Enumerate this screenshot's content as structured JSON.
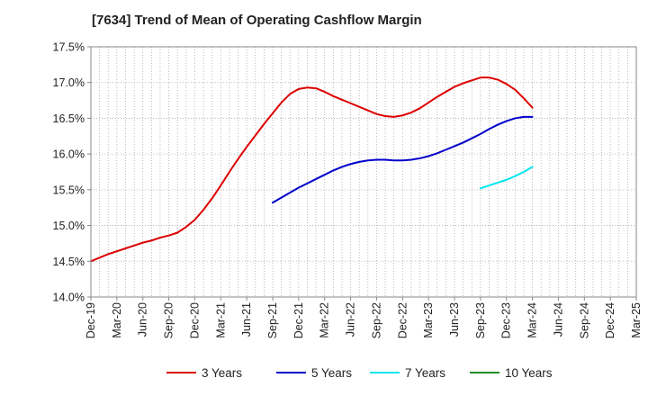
{
  "chart_data": {
    "type": "line",
    "title": "[7634]  Trend of Mean of Operating Cashflow Margin",
    "xlabel": "",
    "ylabel": "",
    "ylim": [
      14.0,
      17.5
    ],
    "y_ticks": [
      14.0,
      14.5,
      15.0,
      15.5,
      16.0,
      16.5,
      17.0,
      17.5
    ],
    "y_tick_labels": [
      "14.0%",
      "14.5%",
      "15.0%",
      "15.5%",
      "16.0%",
      "16.5%",
      "17.0%",
      "17.5%"
    ],
    "x_tick_labels": [
      "Dec-19",
      "Mar-20",
      "Jun-20",
      "Sep-20",
      "Dec-20",
      "Mar-21",
      "Jun-21",
      "Sep-21",
      "Dec-21",
      "Mar-22",
      "Jun-22",
      "Sep-22",
      "Dec-22",
      "Mar-23",
      "Jun-23",
      "Sep-23",
      "Dec-23",
      "Mar-24",
      "Jun-24",
      "Sep-24",
      "Dec-24",
      "Mar-25"
    ],
    "grid": true,
    "legend_position": "bottom",
    "series": [
      {
        "name": "3 Years",
        "color": "#dd0000",
        "x": [
          "Dec-19",
          "Jan-20",
          "Feb-20",
          "Mar-20",
          "Apr-20",
          "May-20",
          "Jun-20",
          "Jul-20",
          "Aug-20",
          "Sep-20",
          "Oct-20",
          "Nov-20",
          "Dec-20",
          "Jan-21",
          "Feb-21",
          "Mar-21",
          "Apr-21",
          "May-21",
          "Jun-21",
          "Jul-21",
          "Aug-21",
          "Sep-21",
          "Oct-21",
          "Nov-21",
          "Dec-21",
          "Jan-22",
          "Feb-22",
          "Mar-22",
          "Apr-22",
          "May-22",
          "Jun-22",
          "Jul-22",
          "Aug-22",
          "Sep-22",
          "Oct-22",
          "Nov-22",
          "Dec-22",
          "Jan-23",
          "Feb-23",
          "Mar-23",
          "Apr-23",
          "May-23",
          "Jun-23",
          "Jul-23",
          "Aug-23",
          "Sep-23",
          "Oct-23",
          "Nov-23",
          "Dec-23",
          "Jan-24",
          "Feb-24",
          "Mar-24"
        ],
        "values": [
          14.5,
          14.55,
          14.6,
          14.64,
          14.68,
          14.72,
          14.76,
          14.79,
          14.83,
          14.86,
          14.9,
          14.98,
          15.08,
          15.22,
          15.38,
          15.56,
          15.75,
          15.93,
          16.1,
          16.26,
          16.42,
          16.57,
          16.72,
          16.84,
          16.91,
          16.93,
          16.92,
          16.87,
          16.81,
          16.76,
          16.71,
          16.66,
          16.61,
          16.56,
          16.53,
          16.52,
          16.54,
          16.58,
          16.64,
          16.72,
          16.8,
          16.87,
          16.94,
          16.99,
          17.03,
          17.07,
          17.07,
          17.04,
          16.98,
          16.9,
          16.78,
          16.65
        ]
      },
      {
        "name": "5 Years",
        "color": "#0000cc",
        "x": [
          "Sep-21",
          "Oct-21",
          "Nov-21",
          "Dec-21",
          "Jan-22",
          "Feb-22",
          "Mar-22",
          "Apr-22",
          "May-22",
          "Jun-22",
          "Jul-22",
          "Aug-22",
          "Sep-22",
          "Oct-22",
          "Nov-22",
          "Dec-22",
          "Jan-23",
          "Feb-23",
          "Mar-23",
          "Apr-23",
          "May-23",
          "Jun-23",
          "Jul-23",
          "Aug-23",
          "Sep-23",
          "Oct-23",
          "Nov-23",
          "Dec-23",
          "Jan-24",
          "Feb-24",
          "Mar-24"
        ],
        "values": [
          15.32,
          15.39,
          15.46,
          15.53,
          15.59,
          15.65,
          15.71,
          15.77,
          15.82,
          15.86,
          15.89,
          15.91,
          15.92,
          15.92,
          15.91,
          15.91,
          15.92,
          15.94,
          15.97,
          16.01,
          16.06,
          16.11,
          16.16,
          16.22,
          16.28,
          16.35,
          16.41,
          16.46,
          16.5,
          16.52,
          16.52
        ]
      },
      {
        "name": "7 Years",
        "color": "#00e5ee",
        "x": [
          "Sep-23",
          "Oct-23",
          "Nov-23",
          "Dec-23",
          "Jan-24",
          "Feb-24",
          "Mar-24"
        ],
        "values": [
          15.52,
          15.56,
          15.6,
          15.64,
          15.69,
          15.75,
          15.82
        ]
      },
      {
        "name": "10 Years",
        "color": "#228b22",
        "x": [],
        "values": []
      }
    ]
  }
}
